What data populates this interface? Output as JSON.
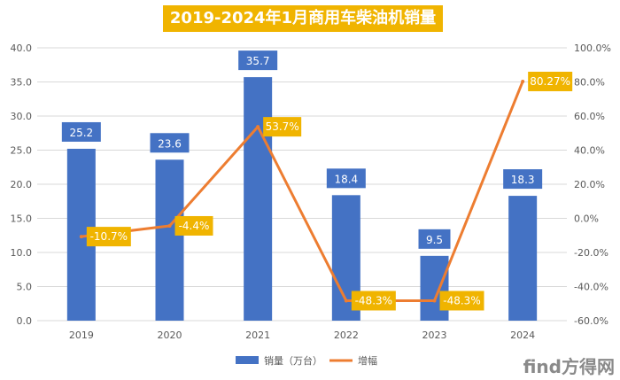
{
  "watermark": "find方得网",
  "chart_data": {
    "type": "bar+line",
    "title": "2019-2024年1月商用车柴油机销量",
    "categories": [
      "2019",
      "2020",
      "2021",
      "2022",
      "2023",
      "2024"
    ],
    "series": [
      {
        "name": "销量（万台）",
        "type": "bar",
        "axis": "left",
        "color": "#4472c4",
        "values": [
          25.2,
          23.6,
          35.7,
          18.4,
          9.5,
          18.3
        ],
        "labels": [
          "25.2",
          "23.6",
          "35.7",
          "18.4",
          "9.5",
          "18.3"
        ]
      },
      {
        "name": "增幅",
        "type": "line",
        "axis": "right",
        "color": "#ed7d31",
        "values": [
          -10.7,
          -4.4,
          53.7,
          -48.3,
          -48.3,
          80.27
        ],
        "labels": [
          "-10.7%",
          "-4.4%",
          "53.7%",
          "-48.3%",
          "-48.3%",
          "80.27%"
        ]
      }
    ],
    "y_left": {
      "min": 0,
      "max": 40,
      "step": 5,
      "ticks": [
        "0.0",
        "5.0",
        "10.0",
        "15.0",
        "20.0",
        "25.0",
        "30.0",
        "35.0",
        "40.0"
      ]
    },
    "y_right": {
      "min": -60,
      "max": 100,
      "step": 20,
      "ticks": [
        "-60.0%",
        "-40.0%",
        "-20.0%",
        "0.0%",
        "20.0%",
        "40.0%",
        "60.0%",
        "80.0%",
        "100.0%"
      ]
    },
    "grid": true,
    "legend_position": "bottom",
    "colors": {
      "title_bg": "#f0b400",
      "bar_label_bg": "#4472c4",
      "line_label_bg": "#f0b400",
      "grid": "#d9d9d9",
      "axis_text": "#595959"
    }
  }
}
